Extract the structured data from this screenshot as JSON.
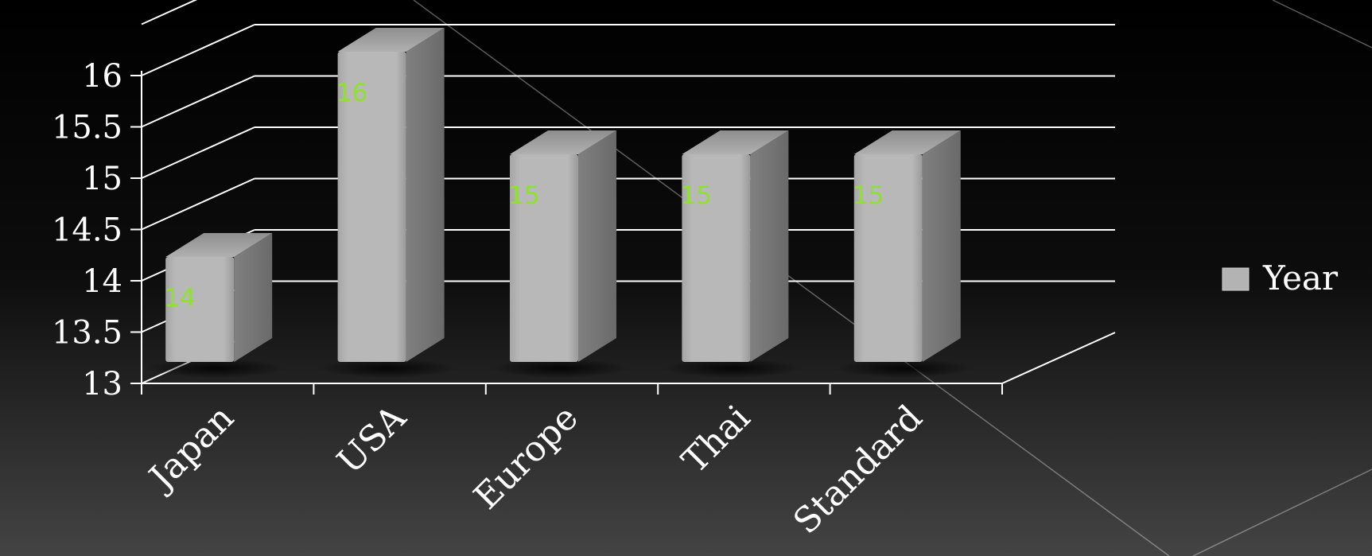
{
  "chart_data": {
    "type": "bar",
    "categories": [
      "Japan",
      "USA",
      "Europe",
      "Thai",
      "Standard"
    ],
    "series": [
      {
        "name": "Year",
        "values": [
          14,
          16,
          15,
          15,
          15
        ]
      }
    ],
    "data_labels": [
      "14",
      "16",
      "15",
      "15",
      "15"
    ],
    "title": "",
    "xlabel": "",
    "ylabel": "",
    "ylim": [
      13,
      16
    ],
    "y_ticks": [
      "13",
      "13.5",
      "14",
      "14.5",
      "15",
      "15.5",
      "16"
    ],
    "grid": true,
    "legend_position": "right",
    "colors": {
      "bar_front": "#b3b3b3",
      "bar_side": "#737373",
      "bar_top": "#a0a0a0",
      "data_label": "#8ee32a",
      "axis": "#ffffff"
    }
  }
}
